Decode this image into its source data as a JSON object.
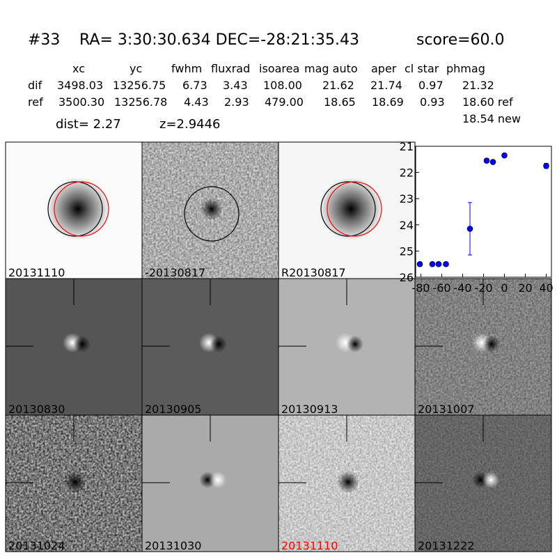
{
  "header": {
    "id": "#33",
    "coords": "RA= 3:30:30.634 DEC=-28:21:35.43",
    "score": "score=60.0"
  },
  "table": {
    "columns": [
      "xc",
      "yc",
      "fwhm",
      "fluxrad",
      "isoarea",
      "mag auto",
      "aper",
      "cl star",
      "phmag"
    ],
    "rows": [
      [
        "dif",
        "3498.03",
        "13256.75",
        "6.73",
        "3.43",
        "108.00",
        "21.62",
        "21.74",
        "0.97",
        "21.32"
      ],
      [
        "ref",
        "3500.30",
        "13256.78",
        "4.43",
        "2.93",
        "479.00",
        "18.65",
        "18.69",
        "0.93",
        "18.60 ref"
      ]
    ],
    "extra": "18.54 new",
    "dist": "dist=  2.27",
    "z": "z=2.9446"
  },
  "stamps": [
    {
      "label": "20131110"
    },
    {
      "label": "-20130817"
    },
    {
      "label": "R20130817"
    },
    {
      "label": "20130830"
    },
    {
      "label": "20130905"
    },
    {
      "label": "20130913"
    },
    {
      "label": "20131007"
    },
    {
      "label": "20131024"
    },
    {
      "label": "20131030"
    },
    {
      "label": "20131110",
      "label_color": "red"
    },
    {
      "label": "20131222"
    }
  ],
  "chart_data": {
    "type": "scatter",
    "x": [
      -81,
      -69,
      -63,
      -56,
      -33,
      -17,
      -11,
      0,
      40
    ],
    "values": [
      25.5,
      25.5,
      25.5,
      25.5,
      24.15,
      21.55,
      21.6,
      21.35,
      21.75
    ],
    "errors": [
      0.05,
      0.05,
      0.05,
      0.05,
      1.0,
      0.08,
      0.05,
      0.05,
      0.1
    ],
    "color": "#0000ff",
    "xlim": [
      -85,
      45
    ],
    "xticks": [
      -80,
      -60,
      -40,
      -20,
      0,
      20,
      40
    ],
    "ylim": [
      26,
      21
    ],
    "yticks": [
      21,
      22,
      23,
      24,
      25,
      26
    ]
  }
}
